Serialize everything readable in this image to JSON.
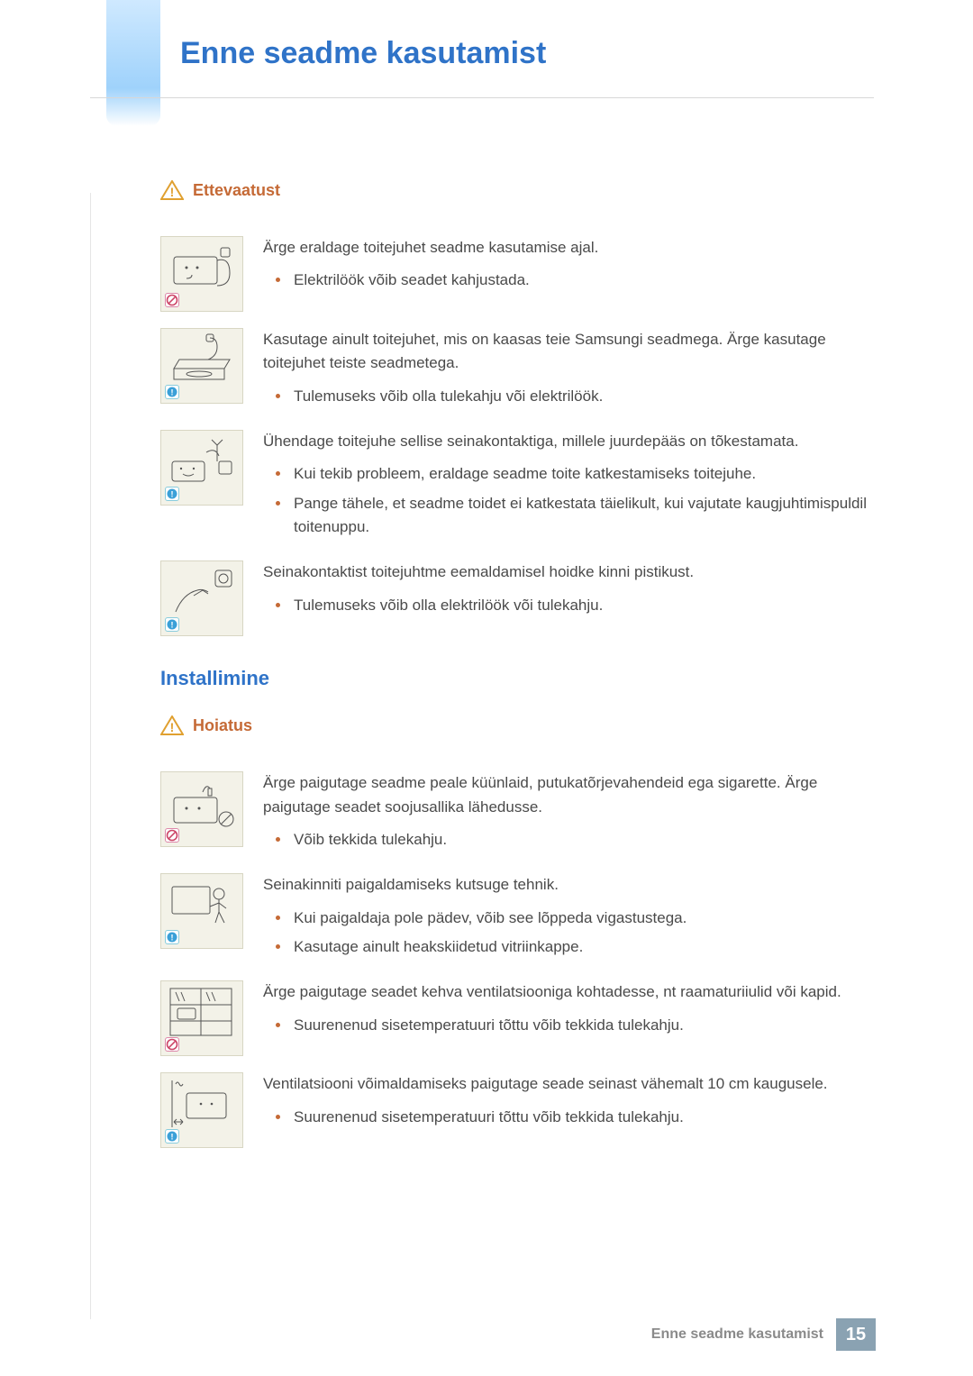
{
  "colors": {
    "accent_blue": "#2f73c8",
    "accent_orange": "#c56a36",
    "text": "#4a4a4a",
    "thumb_bg": "#f3f2e8",
    "thumb_border": "#d8d6c3",
    "footer_text": "#8a8a8a",
    "page_box": "#8aa2b2",
    "side_tab_top": "#cfe9ff",
    "side_tab_mid": "#9fd2fb"
  },
  "typography": {
    "title_fontsize": 34,
    "body_fontsize": 17,
    "callout_fontsize": 18,
    "section_fontsize": 22,
    "footer_fontsize": 16,
    "page_fontsize": 20
  },
  "chapter_title": "Enne seadme kasutamist",
  "callouts": {
    "ettevaatust": "Ettevaatust",
    "hoiatus": "Hoiatus"
  },
  "section_install": "Installimine",
  "items_top": [
    {
      "badge": "prohibit",
      "lead": "Ärge eraldage toitejuhet seadme kasutamise ajal.",
      "bullets": [
        "Elektrilöök võib seadet kahjustada."
      ]
    },
    {
      "badge": "info",
      "lead": "Kasutage ainult toitejuhet, mis on kaasas teie Samsungi seadmega. Ärge kasutage toitejuhet teiste seadmetega.",
      "bullets": [
        "Tulemuseks võib olla tulekahju või elektrilöök."
      ]
    },
    {
      "badge": "info",
      "lead": "Ühendage toitejuhe sellise seinakontaktiga, millele juurdepääs on tõkestamata.",
      "bullets": [
        "Kui tekib probleem, eraldage seadme toite katkestamiseks toitejuhe.",
        "Pange tähele, et seadme toidet ei katkestata täielikult, kui vajutate kaugjuhtimispuldil toitenuppu."
      ]
    },
    {
      "badge": "info",
      "lead": "Seinakontaktist toitejuhtme eemaldamisel hoidke kinni pistikust.",
      "bullets": [
        "Tulemuseks võib olla elektrilöök või tulekahju."
      ]
    }
  ],
  "items_install": [
    {
      "badge": "prohibit",
      "lead": "Ärge paigutage seadme peale küünlaid, putukatõrjevahendeid ega sigarette. Ärge paigutage seadet soojusallika lähedusse.",
      "bullets": [
        "Võib tekkida tulekahju."
      ]
    },
    {
      "badge": "info",
      "lead": "Seinakinniti paigaldamiseks kutsuge tehnik.",
      "bullets": [
        "Kui paigaldaja pole pädev, võib see lõppeda vigastustega.",
        "Kasutage ainult heakskiidetud vitriinkappe."
      ]
    },
    {
      "badge": "prohibit",
      "lead": "Ärge paigutage seadet kehva ventilatsiooniga kohtadesse, nt raamaturiiulid või kapid.",
      "bullets": [
        "Suurenenud sisetemperatuuri tõttu võib tekkida tulekahju."
      ]
    },
    {
      "badge": "info",
      "lead": "Ventilatsiooni võimaldamiseks paigutage seade seinast vähemalt 10 cm kaugusele.",
      "bullets": [
        "Suurenenud sisetemperatuuri tõttu võib tekkida tulekahju."
      ]
    }
  ],
  "footer": {
    "text": "Enne seadme kasutamist",
    "page": "15"
  }
}
